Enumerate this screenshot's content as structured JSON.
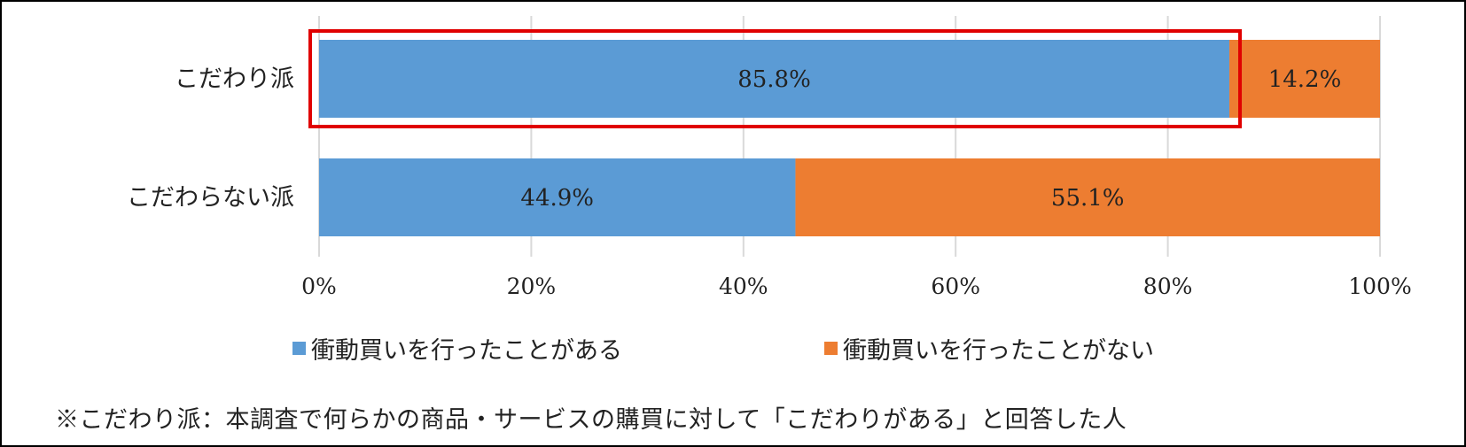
{
  "chart_data": {
    "type": "bar",
    "orientation": "horizontal",
    "stacked": true,
    "categories": [
      "こだわり派",
      "こだわらない派"
    ],
    "series": [
      {
        "name": "衝動買いを行ったことがある",
        "values": [
          85.8,
          44.9
        ],
        "labels": [
          "85.8%",
          "44.9%"
        ],
        "color": "#5b9bd5"
      },
      {
        "name": "衝動買いを行ったことがない",
        "values": [
          14.2,
          55.1
        ],
        "labels": [
          "14.2%",
          "55.1%"
        ],
        "color": "#ed7d31"
      }
    ],
    "xlim": [
      0,
      100
    ],
    "x_ticks": [
      "0%",
      "20%",
      "40%",
      "60%",
      "80%",
      "100%"
    ],
    "grid": "vertical",
    "legend_position": "bottom",
    "highlight": {
      "category": "こだわり派",
      "color": "#e00000"
    }
  },
  "note": "※こだわり派：本調査で何らかの商品・サービスの購買に対して「こだわりがある」と回答した人"
}
